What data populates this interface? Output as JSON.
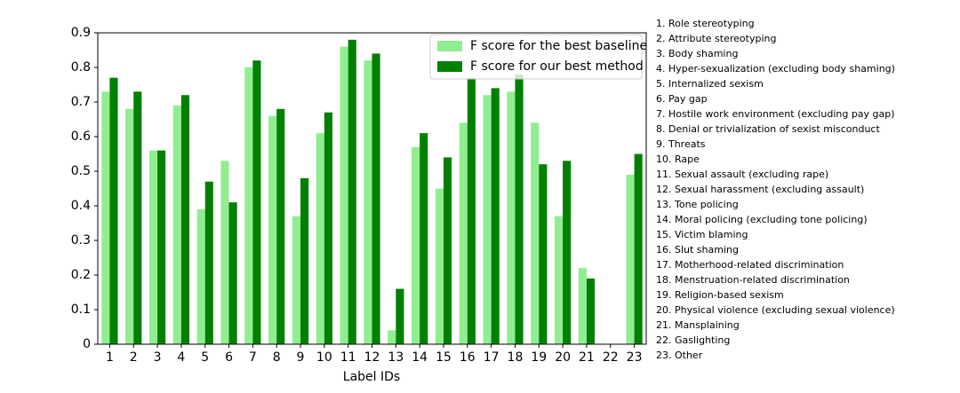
{
  "chart_data": {
    "type": "bar",
    "xlabel": "Label IDs",
    "categories": [
      "1",
      "2",
      "3",
      "4",
      "5",
      "6",
      "7",
      "8",
      "9",
      "10",
      "11",
      "12",
      "13",
      "14",
      "15",
      "16",
      "17",
      "18",
      "19",
      "20",
      "21",
      "22",
      "23"
    ],
    "series": [
      {
        "name": "F score for the best baseline",
        "color": "#90ee90",
        "values": [
          0.73,
          0.68,
          0.56,
          0.69,
          0.39,
          0.53,
          0.8,
          0.66,
          0.37,
          0.61,
          0.86,
          0.82,
          0.04,
          0.57,
          0.45,
          0.64,
          0.72,
          0.73,
          0.64,
          0.37,
          0.22,
          0,
          0.49
        ]
      },
      {
        "name": "F score for our best method",
        "color": "#008000",
        "values": [
          0.77,
          0.73,
          0.56,
          0.72,
          0.47,
          0.41,
          0.82,
          0.68,
          0.48,
          0.67,
          0.88,
          0.84,
          0.16,
          0.61,
          0.54,
          0.77,
          0.74,
          0.78,
          0.52,
          0.53,
          0.19,
          0,
          0.55
        ]
      }
    ],
    "ylim": [
      0,
      0.9
    ],
    "yticks": [
      0,
      0.1,
      0.2,
      0.3,
      0.4,
      0.5,
      0.6,
      0.7,
      0.8,
      0.9
    ],
    "legend": "upper right",
    "label_descriptions": [
      "1. Role stereotyping",
      "2. Attribute stereotyping",
      "3. Body shaming",
      "4. Hyper-sexualization (excluding body shaming)",
      "5. Internalized sexism",
      "6. Pay gap",
      "7. Hostile work environment (excluding pay gap)",
      "8. Denial or trivialization of sexist misconduct",
      "9. Threats",
      "10. Rape",
      "11. Sexual assault (excluding rape)",
      "12. Sexual harassment (excluding assault)",
      "13. Tone policing",
      "14. Moral policing (excluding tone policing)",
      "15. Victim blaming",
      "16. Slut shaming",
      "17. Motherhood-related discrimination",
      "18. Menstruation-related discrimination",
      "19. Religion-based sexism",
      "20. Physical violence (excluding sexual violence)",
      "21. Mansplaining",
      "22. Gaslighting",
      "23. Other"
    ]
  }
}
